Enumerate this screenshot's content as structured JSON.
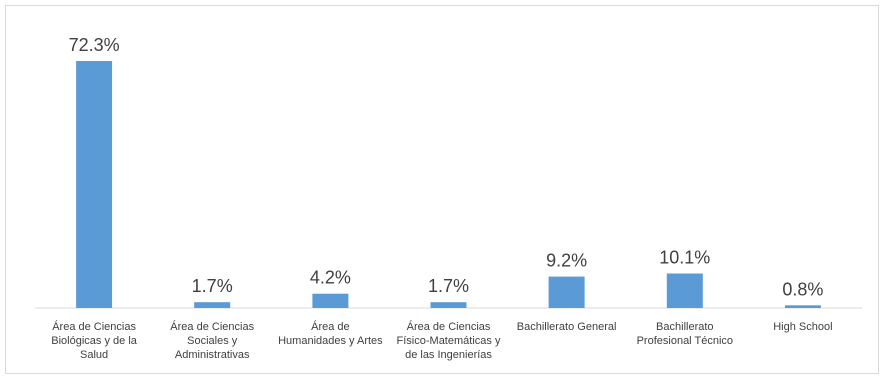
{
  "chart_data": {
    "type": "bar",
    "categories": [
      [
        "Área de Ciencias",
        "Biológicas y de la",
        "Salud"
      ],
      [
        "Área de Ciencias",
        "Sociales y",
        "Administrativas"
      ],
      [
        "Área de",
        "Humanidades y Artes"
      ],
      [
        "Área de Ciencias",
        "Físico-Matemáticas y",
        "de las Ingenierías"
      ],
      [
        "Bachillerato General"
      ],
      [
        "Bachillerato",
        "Profesional Técnico"
      ],
      [
        "High School"
      ]
    ],
    "values": [
      72.3,
      1.7,
      4.2,
      1.7,
      9.2,
      10.1,
      0.8
    ],
    "data_labels": [
      "72.3%",
      "1.7%",
      "4.2%",
      "1.7%",
      "9.2%",
      "10.1%",
      "0.8%"
    ],
    "ylim": [
      0,
      72.3
    ],
    "grid": false,
    "legend": "none",
    "bar_color": "#5b9bd5",
    "axis_color": "#d9d9d9",
    "text_color": "#404040"
  }
}
